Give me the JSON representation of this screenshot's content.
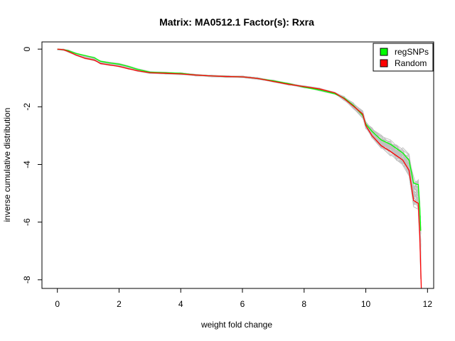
{
  "chart_data": {
    "type": "line",
    "title": "Matrix: MA0512.1 Factor(s): Rxra",
    "xlabel": "weight fold change",
    "ylabel": "inverse cumulative distribution",
    "xlim": [
      -0.5,
      12.2
    ],
    "ylim": [
      -8.3,
      0.25
    ],
    "xticks": [
      0,
      2,
      4,
      6,
      8,
      10,
      12
    ],
    "yticks": [
      0,
      -2,
      -4,
      -6,
      -8
    ],
    "grid": false,
    "legend_position": "top-right",
    "legend": [
      {
        "label": "regSNPs",
        "color": "#00ff00"
      },
      {
        "label": "Random",
        "color": "#ff0000"
      }
    ],
    "series": [
      {
        "name": "regSNPs",
        "color": "#00ff00",
        "x": [
          0.0,
          0.2,
          0.35,
          0.6,
          0.9,
          1.2,
          1.4,
          1.7,
          2.0,
          2.3,
          2.6,
          3.0,
          3.5,
          4.0,
          4.5,
          5.0,
          5.5,
          6.0,
          6.5,
          7.0,
          7.5,
          8.0,
          8.5,
          9.0,
          9.3,
          9.6,
          9.9,
          10.0,
          10.2,
          10.5,
          10.8,
          11.0,
          11.2,
          11.4,
          11.55,
          11.7,
          11.75,
          11.78
        ],
        "y": [
          0.0,
          -0.02,
          -0.05,
          -0.15,
          -0.22,
          -0.3,
          -0.42,
          -0.48,
          -0.52,
          -0.6,
          -0.7,
          -0.8,
          -0.82,
          -0.84,
          -0.9,
          -0.93,
          -0.95,
          -0.96,
          -1.02,
          -1.1,
          -1.2,
          -1.32,
          -1.42,
          -1.55,
          -1.7,
          -1.95,
          -2.3,
          -2.6,
          -2.85,
          -3.15,
          -3.3,
          -3.45,
          -3.6,
          -3.85,
          -4.65,
          -4.7,
          -5.5,
          -6.3
        ]
      },
      {
        "name": "Random",
        "color": "#ff0000",
        "x": [
          0.0,
          0.2,
          0.35,
          0.6,
          0.9,
          1.2,
          1.4,
          1.7,
          2.0,
          2.3,
          2.6,
          3.0,
          3.5,
          4.0,
          4.5,
          5.0,
          5.5,
          6.0,
          6.5,
          7.0,
          7.5,
          8.0,
          8.5,
          9.0,
          9.3,
          9.6,
          9.9,
          10.0,
          10.2,
          10.5,
          10.8,
          11.0,
          11.2,
          11.4,
          11.55,
          11.7,
          11.75,
          11.8
        ],
        "y": [
          0.0,
          -0.02,
          -0.08,
          -0.2,
          -0.32,
          -0.38,
          -0.5,
          -0.55,
          -0.6,
          -0.68,
          -0.75,
          -0.82,
          -0.84,
          -0.86,
          -0.9,
          -0.93,
          -0.95,
          -0.96,
          -1.02,
          -1.12,
          -1.22,
          -1.3,
          -1.38,
          -1.52,
          -1.72,
          -1.98,
          -2.25,
          -2.65,
          -3.0,
          -3.35,
          -3.55,
          -3.7,
          -3.85,
          -4.2,
          -5.25,
          -5.35,
          -6.5,
          -8.3
        ]
      }
    ],
    "background_samples": {
      "color": "#c0c0c0",
      "count": 40
    }
  }
}
